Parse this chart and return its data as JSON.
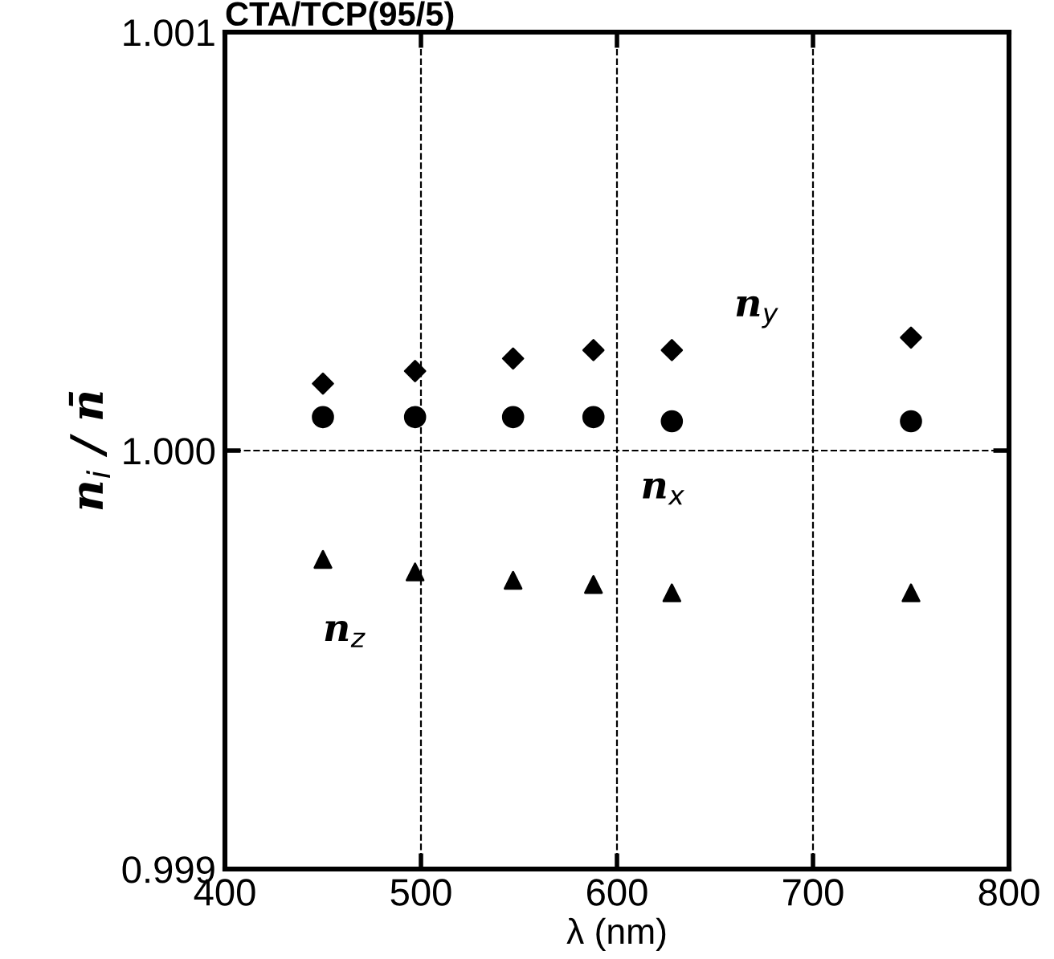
{
  "chart_data": {
    "type": "scatter",
    "title": "CTA/TCP(95/5)",
    "xlabel": "λ (nm)",
    "ylabel": "n$_{i}$ / n̄",
    "x": [
      450,
      497,
      547,
      588,
      628,
      750
    ],
    "series": [
      {
        "name": "n$_{y}$",
        "color": "#000000",
        "marker": "diamond",
        "values": [
          1.00016,
          1.00019,
          1.00022,
          1.00024,
          1.00024,
          1.00027
        ]
      },
      {
        "name": "n$_{x}$",
        "color": "#000000",
        "marker": "circle",
        "values": [
          1.00008,
          1.00008,
          1.00008,
          1.00008,
          1.00007,
          1.00007
        ]
      },
      {
        "name": "n$_{z}$",
        "color": "#000000",
        "marker": "triangle",
        "values": [
          0.99974,
          0.99971,
          0.99969,
          0.99968,
          0.99966,
          0.99966
        ]
      }
    ],
    "xlim": [
      400,
      800
    ],
    "xticks": [
      400,
      500,
      600,
      700,
      800
    ],
    "ylim": [
      0.999,
      1.001
    ],
    "yticks": [
      {
        "value": 0.999,
        "label": "0.999"
      },
      {
        "value": 1.0,
        "label": "1.000"
      },
      {
        "value": 1.001,
        "label": "1.001"
      }
    ],
    "grid": true,
    "line_style": "dashed",
    "legend": false
  }
}
